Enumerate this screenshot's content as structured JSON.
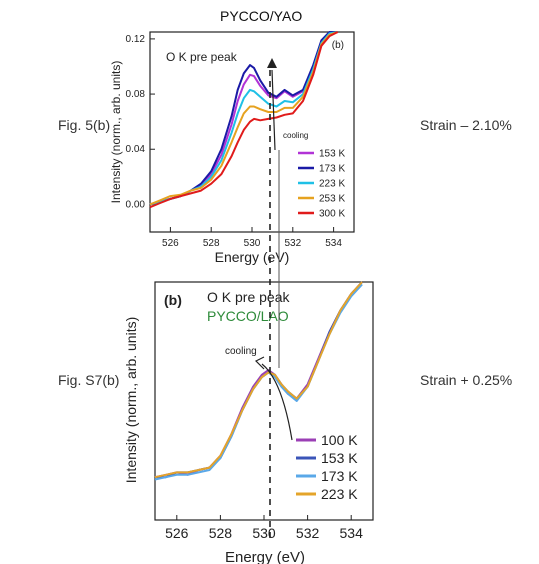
{
  "page": {
    "top_title": "PYCCO/YAO",
    "left_label_top": "Fig. 5(b)",
    "left_label_bottom": "Fig. S7(b)",
    "right_label_top": "Strain – 2.10%",
    "right_label_bottom": "Strain + 0.25%"
  },
  "chart_data": [
    {
      "type": "line",
      "title": "PYCCO/YAO",
      "panel_label": "(b)",
      "annotation": "O K pre peak",
      "arrow_label": "cooling",
      "xlabel": "Energy (eV)",
      "ylabel": "Intensity (norm., arb. units)",
      "xlim": [
        525,
        535
      ],
      "ylim": [
        -0.02,
        0.125
      ],
      "xticks": [
        526,
        528,
        530,
        532,
        534
      ],
      "yticks": [
        0.0,
        0.04,
        0.08,
        0.12
      ],
      "ytick_labels": [
        "0.00",
        "0.04",
        "0.08",
        "0.12"
      ],
      "grid": false,
      "legend_position": "bottom-right",
      "series": [
        {
          "name": "153 K",
          "color": "#b133d6",
          "x": [
            525,
            525.5,
            526,
            526.5,
            527,
            527.5,
            528,
            528.5,
            529,
            529.3,
            529.6,
            529.9,
            530.1,
            530.4,
            530.8,
            531.2,
            531.6,
            532.0,
            532.5,
            533.0,
            533.4,
            533.8,
            534.2
          ],
          "y": [
            0.0,
            0.002,
            0.004,
            0.006,
            0.01,
            0.014,
            0.022,
            0.036,
            0.058,
            0.075,
            0.087,
            0.094,
            0.093,
            0.086,
            0.079,
            0.077,
            0.082,
            0.078,
            0.082,
            0.1,
            0.118,
            0.125,
            0.13
          ]
        },
        {
          "name": "173 K",
          "color": "#1a1aa6",
          "x": [
            525,
            525.5,
            526,
            526.5,
            527,
            527.5,
            528,
            528.5,
            529,
            529.3,
            529.6,
            529.9,
            530.1,
            530.4,
            530.8,
            531.2,
            531.6,
            532.0,
            532.5,
            533.0,
            533.4,
            533.8,
            534.2
          ],
          "y": [
            0.0,
            0.002,
            0.004,
            0.006,
            0.01,
            0.015,
            0.024,
            0.04,
            0.064,
            0.083,
            0.095,
            0.101,
            0.099,
            0.09,
            0.081,
            0.078,
            0.083,
            0.079,
            0.083,
            0.101,
            0.119,
            0.126,
            0.131
          ]
        },
        {
          "name": "223 K",
          "color": "#1fc0e6",
          "x": [
            525,
            525.5,
            526,
            526.5,
            527,
            527.5,
            528,
            528.5,
            529,
            529.3,
            529.6,
            529.9,
            530.1,
            530.4,
            530.8,
            531.2,
            531.6,
            532.0,
            532.5,
            533.0,
            533.4,
            533.8,
            534.2
          ],
          "y": [
            0.0,
            0.002,
            0.004,
            0.006,
            0.01,
            0.013,
            0.02,
            0.032,
            0.052,
            0.066,
            0.077,
            0.083,
            0.082,
            0.078,
            0.073,
            0.071,
            0.075,
            0.074,
            0.08,
            0.098,
            0.117,
            0.124,
            0.129
          ]
        },
        {
          "name": "253 K",
          "color": "#e6a21f",
          "x": [
            525,
            525.5,
            526,
            526.5,
            527,
            527.5,
            528,
            528.5,
            529,
            529.3,
            529.6,
            529.9,
            530.1,
            530.4,
            530.8,
            531.2,
            531.6,
            532.0,
            532.5,
            533.0,
            533.4,
            533.8,
            534.2
          ],
          "y": [
            0.0,
            0.003,
            0.006,
            0.007,
            0.01,
            0.012,
            0.018,
            0.028,
            0.045,
            0.056,
            0.066,
            0.071,
            0.071,
            0.069,
            0.067,
            0.067,
            0.07,
            0.07,
            0.078,
            0.096,
            0.116,
            0.123,
            0.128
          ]
        },
        {
          "name": "300 K",
          "color": "#e01b1b",
          "x": [
            525,
            525.5,
            526,
            526.5,
            527,
            527.5,
            528,
            528.5,
            529,
            529.3,
            529.6,
            529.9,
            530.1,
            530.4,
            530.8,
            531.2,
            531.6,
            532.0,
            532.5,
            533.0,
            533.4,
            533.8,
            534.2
          ],
          "y": [
            -0.002,
            0.001,
            0.004,
            0.006,
            0.008,
            0.01,
            0.015,
            0.022,
            0.035,
            0.045,
            0.054,
            0.06,
            0.062,
            0.061,
            0.062,
            0.063,
            0.065,
            0.066,
            0.075,
            0.094,
            0.115,
            0.122,
            0.127
          ]
        }
      ]
    },
    {
      "type": "line",
      "title": "",
      "panel_label": "(b)",
      "annotation": "O K pre peak",
      "sample_label": "PYCCO/LAO",
      "arrow_label": "cooling",
      "xlabel": "Energy (eV)",
      "ylabel": "Intensity (norm., arb. units)",
      "xlim": [
        525,
        535
      ],
      "ylim": [
        0,
        1
      ],
      "xticks": [
        526,
        528,
        530,
        532,
        534
      ],
      "grid": false,
      "legend_position": "bottom-right",
      "series": [
        {
          "name": "100 K",
          "color": "#9b3fb5",
          "x": [
            525,
            525.5,
            526,
            526.5,
            527,
            527.5,
            528,
            528.5,
            529,
            529.5,
            529.9,
            530.2,
            530.5,
            530.8,
            531.1,
            531.5,
            532.0,
            532.5,
            533.0,
            533.5,
            534.0,
            534.5
          ],
          "y": [
            0.18,
            0.19,
            0.2,
            0.19,
            0.21,
            0.22,
            0.27,
            0.36,
            0.47,
            0.56,
            0.61,
            0.63,
            0.61,
            0.57,
            0.53,
            0.51,
            0.57,
            0.68,
            0.79,
            0.88,
            0.95,
            1.0
          ]
        },
        {
          "name": "153 K",
          "color": "#3b55b8",
          "x": [
            525,
            525.5,
            526,
            526.5,
            527,
            527.5,
            528,
            528.5,
            529,
            529.5,
            529.9,
            530.2,
            530.5,
            530.8,
            531.1,
            531.5,
            532.0,
            532.5,
            533.0,
            533.5,
            534.0,
            534.5
          ],
          "y": [
            0.18,
            0.18,
            0.2,
            0.2,
            0.21,
            0.22,
            0.26,
            0.35,
            0.46,
            0.55,
            0.6,
            0.62,
            0.61,
            0.57,
            0.54,
            0.51,
            0.56,
            0.67,
            0.79,
            0.88,
            0.95,
            1.0
          ]
        },
        {
          "name": "173 K",
          "color": "#5aa8e8",
          "x": [
            525,
            525.5,
            526,
            526.5,
            527,
            527.5,
            528,
            528.5,
            529,
            529.5,
            529.9,
            530.2,
            530.5,
            530.8,
            531.1,
            531.5,
            532.0,
            532.5,
            533.0,
            533.5,
            534.0,
            534.5
          ],
          "y": [
            0.17,
            0.18,
            0.19,
            0.19,
            0.2,
            0.21,
            0.26,
            0.35,
            0.46,
            0.55,
            0.6,
            0.62,
            0.6,
            0.56,
            0.53,
            0.5,
            0.56,
            0.67,
            0.78,
            0.87,
            0.94,
            0.99
          ]
        },
        {
          "name": "223 K",
          "color": "#e4a42a",
          "x": [
            525,
            525.5,
            526,
            526.5,
            527,
            527.5,
            528,
            528.5,
            529,
            529.5,
            529.9,
            530.2,
            530.5,
            530.8,
            531.1,
            531.5,
            532.0,
            532.5,
            533.0,
            533.5,
            534.0,
            534.5
          ],
          "y": [
            0.18,
            0.19,
            0.2,
            0.2,
            0.21,
            0.22,
            0.27,
            0.36,
            0.46,
            0.55,
            0.6,
            0.62,
            0.61,
            0.57,
            0.54,
            0.51,
            0.56,
            0.67,
            0.78,
            0.88,
            0.95,
            1.0
          ]
        }
      ]
    }
  ]
}
